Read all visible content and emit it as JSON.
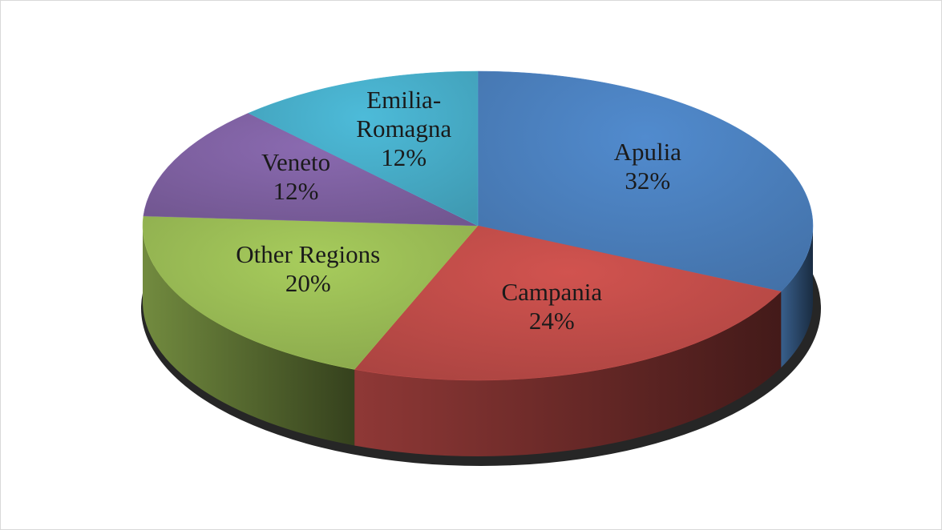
{
  "chart_data": {
    "type": "pie",
    "categories": [
      "Apulia",
      "Campania",
      "Other Regions",
      "Veneto",
      "Emilia-Romagna"
    ],
    "values": [
      32,
      24,
      20,
      12,
      12
    ],
    "value_labels": [
      "32%",
      "24%",
      "20%",
      "12%",
      "12%"
    ],
    "colors": [
      "#4a7ebb",
      "#be4b48",
      "#98b954",
      "#7d60a0",
      "#46aac5"
    ]
  }
}
